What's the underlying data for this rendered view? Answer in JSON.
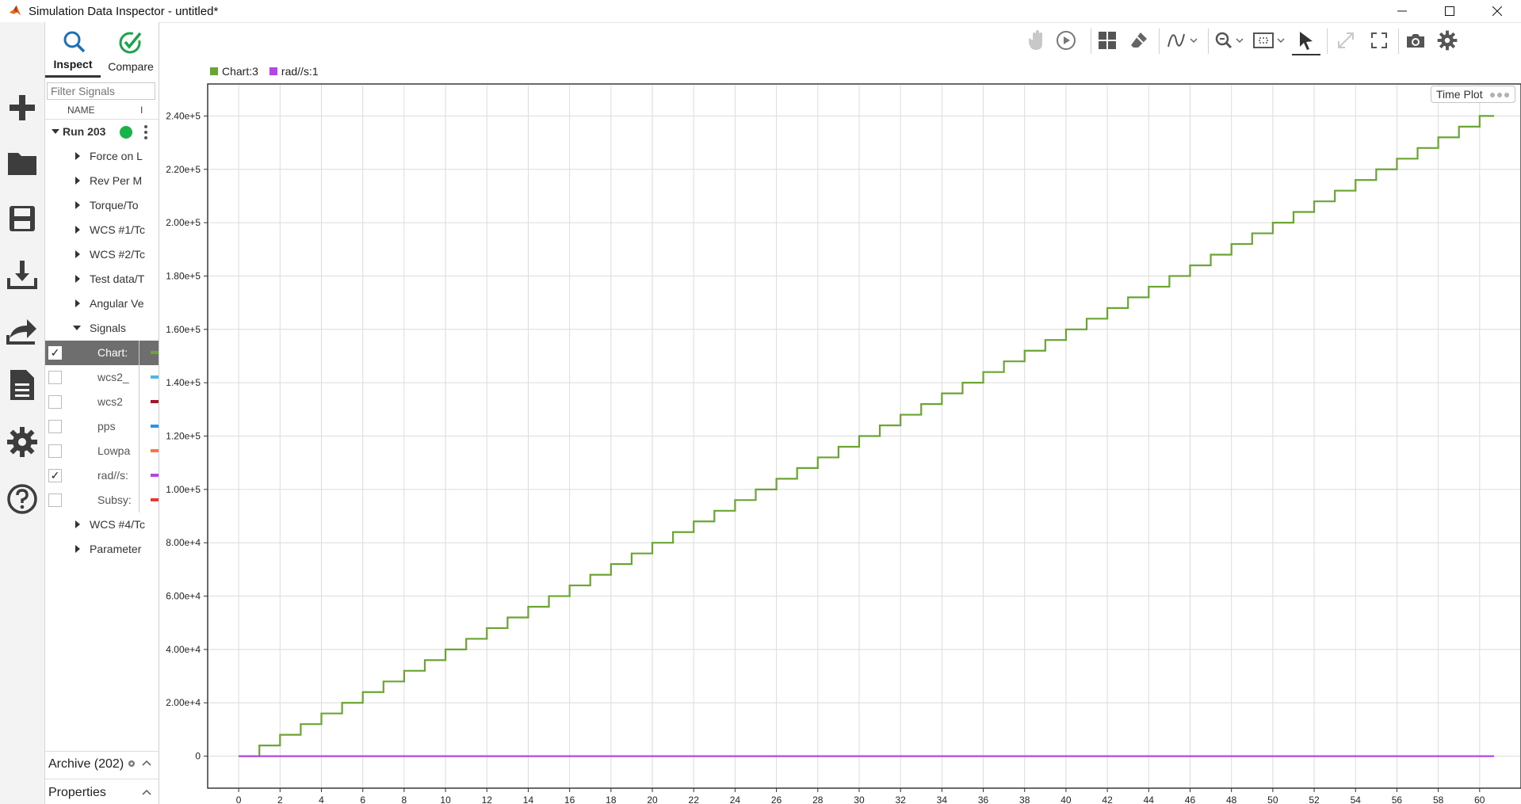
{
  "window": {
    "title": "Simulation Data Inspector - untitled*",
    "controls": [
      "minimize-icon",
      "maximize-icon",
      "close-icon"
    ]
  },
  "left_toolbar": [
    "add-icon",
    "folder-icon",
    "save-icon",
    "download-icon",
    "share-icon",
    "report-icon",
    "gear-icon",
    "help-icon"
  ],
  "browser": {
    "tabs": [
      {
        "label": "Inspect",
        "active": true
      },
      {
        "label": "Compare",
        "active": false
      }
    ],
    "filter_placeholder": "Filter Signals",
    "columns": [
      "NAME",
      "I"
    ],
    "run": {
      "label": "Run 203",
      "status_color": "#19b34a"
    },
    "groups": [
      {
        "label": "Force on L",
        "expanded": false
      },
      {
        "label": "Rev Per M",
        "expanded": false
      },
      {
        "label": "Torque/To",
        "expanded": false
      },
      {
        "label": "WCS #1/Tc",
        "expanded": false
      },
      {
        "label": "WCS #2/Tc",
        "expanded": false
      },
      {
        "label": "Test data/T",
        "expanded": false
      },
      {
        "label": "Angular Ve",
        "expanded": false
      },
      {
        "label": "Signals",
        "expanded": true
      }
    ],
    "signals": [
      {
        "label": "Chart:",
        "checked": true,
        "selected": true,
        "color": "#6aa532"
      },
      {
        "label": "wcs2_",
        "checked": false,
        "selected": false,
        "color": "#4db6e6"
      },
      {
        "label": "wcs2",
        "checked": false,
        "selected": false,
        "color": "#a3162b"
      },
      {
        "label": "pps",
        "checked": false,
        "selected": false,
        "color": "#2196f3"
      },
      {
        "label": "Lowpa",
        "checked": false,
        "selected": false,
        "color": "#ff7043"
      },
      {
        "label": "rad//s:",
        "checked": true,
        "selected": false,
        "color": "#b347e6"
      },
      {
        "label": "Subsy:",
        "checked": false,
        "selected": false,
        "color": "#e53935"
      }
    ],
    "after_groups": [
      {
        "label": "WCS #4/Tc",
        "expanded": false
      },
      {
        "label": "Parameter",
        "expanded": false
      }
    ],
    "archive": "Archive (202)",
    "properties": "Properties"
  },
  "plot_toolbar": [
    "hand-icon",
    "play-icon",
    "layout-icon",
    "eraser-icon",
    "signal-icon",
    "zoom-icon",
    "fit-icon",
    "cursor-icon",
    "expand-icon",
    "fullscreen-icon",
    "camera-icon",
    "settings-icon"
  ],
  "plot_label": "Time Plot",
  "chart_data": {
    "type": "line",
    "legend": [
      "Chart:3",
      "rad//s:1"
    ],
    "xlim": [
      -1.5,
      62
    ],
    "ylim": [
      -12000,
      252000
    ],
    "xticks": [
      0,
      2,
      4,
      6,
      8,
      10,
      12,
      14,
      16,
      18,
      20,
      22,
      24,
      26,
      28,
      30,
      32,
      34,
      36,
      38,
      40,
      42,
      44,
      46,
      48,
      50,
      52,
      54,
      56,
      58,
      60
    ],
    "yticks": [
      0,
      20000,
      40000,
      60000,
      80000,
      100000,
      120000,
      140000,
      160000,
      180000,
      200000,
      220000,
      240000
    ],
    "ytick_labels": [
      "0",
      "2.00e+4",
      "4.00e+4",
      "6.00e+4",
      "8.00e+4",
      "1.00e+5",
      "1.20e+5",
      "1.40e+5",
      "1.60e+5",
      "1.80e+5",
      "2.00e+5",
      "2.20e+5",
      "2.40e+5"
    ],
    "grid": true,
    "series": [
      {
        "name": "Chart:3",
        "color": "#6aa532",
        "type": "step",
        "x_start": 0,
        "first_step_x": 1,
        "step_dx": 1,
        "step_dy": 4000,
        "x_end": 60.7
      },
      {
        "name": "rad//s:1",
        "color": "#b347e6",
        "type": "line",
        "x": [
          0,
          60.7
        ],
        "y": [
          0,
          0
        ]
      }
    ]
  }
}
